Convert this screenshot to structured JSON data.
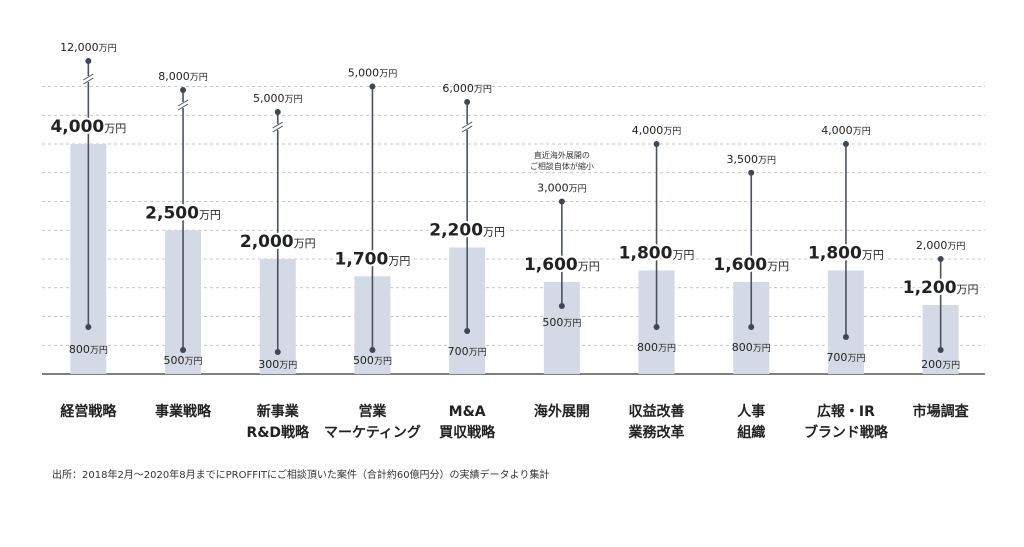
{
  "chart_data": {
    "type": "bar",
    "title": "",
    "xlabel": "",
    "ylabel": "",
    "ylim": [
      0,
      4800
    ],
    "grid": true,
    "unit": "万円",
    "categories": [
      {
        "lines": [
          "経営戦略"
        ]
      },
      {
        "lines": [
          "事業戦略"
        ]
      },
      {
        "lines": [
          "新事業",
          "R&D戦略"
        ]
      },
      {
        "lines": [
          "営業",
          "マーケティング"
        ]
      },
      {
        "lines": [
          "M&A",
          "買収戦略"
        ]
      },
      {
        "lines": [
          "海外展開"
        ]
      },
      {
        "lines": [
          "収益改善",
          "業務改革"
        ]
      },
      {
        "lines": [
          "人事",
          "組織"
        ]
      },
      {
        "lines": [
          "広報・IR",
          "ブランド戦略"
        ]
      },
      {
        "lines": [
          "市場調査"
        ]
      }
    ],
    "series": [
      {
        "name": "",
        "values": [
          4000,
          2500,
          2000,
          1700,
          2200,
          1600,
          1800,
          1600,
          1800,
          1200
        ],
        "labels": [
          "4,000万円",
          "2,500万円",
          "2,000万円",
          "1,700万円",
          "2,200万円",
          "1,600万円",
          "1,800万円",
          "1,600万円",
          "1,800万円",
          "1,200万円"
        ]
      }
    ],
    "range_max": [
      12000,
      8000,
      5000,
      5000,
      6000,
      3000,
      4000,
      3500,
      4000,
      2000
    ],
    "range_max_labels": [
      "12,000万円",
      "8,000万円",
      "5,000万円",
      "5,000万円",
      "6,000万円",
      "3,000万円",
      "4,000万円",
      "3,500万円",
      "4,000万円",
      "2,000万円"
    ],
    "range_min": [
      800,
      500,
      300,
      500,
      700,
      500,
      800,
      800,
      700,
      200
    ],
    "range_min_labels": [
      "800万円",
      "500万円",
      "300万円",
      "500万円",
      "700万円",
      "500万円",
      "800万円",
      "800万円",
      "700万円",
      "200万円"
    ],
    "axis_break": [
      true,
      true,
      true,
      false,
      true,
      false,
      false,
      false,
      false,
      false
    ],
    "annotations": [
      {
        "category_index": 5,
        "lines": [
          "直近海外展開の",
          "ご相談自体が縮小"
        ]
      }
    ],
    "source_note": "出所：2018年2月〜2020年8月までにPROFFITにご相談頂いた案件（合計約60億円分）の実績データより集計"
  },
  "colors": {
    "bar": "#d4dae5",
    "range_line": "#4a5262",
    "dot": "#3f4757",
    "grid": "#b5b5b5",
    "baseline": "#555555",
    "text": "#222222"
  }
}
